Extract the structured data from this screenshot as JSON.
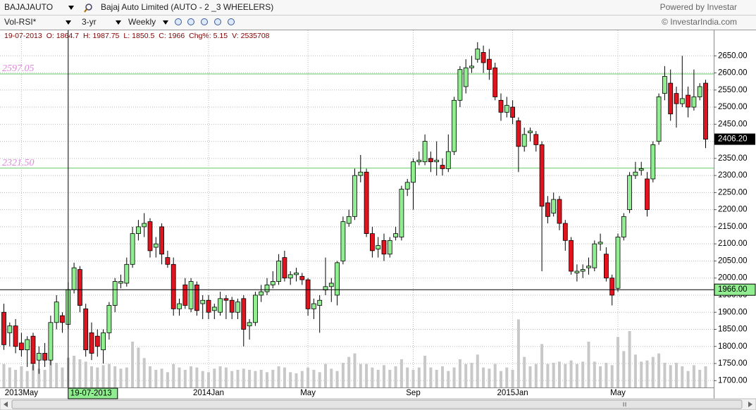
{
  "toolbar": {
    "symbol": "BAJAJAUTO",
    "company": "Bajaj Auto Limited  (AUTO - 2 _3 WHEELERS)",
    "powered": "Powered by Investar",
    "indicator": "Vol-RSI*",
    "period": "3-yr",
    "interval": "Weekly",
    "copyright": "© InvestarIndia.com"
  },
  "info": {
    "date": "19-07-2013",
    "fields": [
      {
        "label": "O:",
        "value": 1864.7
      },
      {
        "label": "H:",
        "value": 1987.75
      },
      {
        "label": "L:",
        "value": 1850.5
      },
      {
        "label": "C:",
        "value": 1966
      },
      {
        "label": "Chg%:",
        "value": 5.15
      },
      {
        "label": "V:",
        "value": 2535708
      }
    ]
  },
  "chart_data": {
    "type": "candlestick",
    "categories": [
      null,
      null,
      null,
      "2013May",
      null,
      null,
      null,
      null,
      null,
      null,
      null,
      "19-07-2013",
      null,
      null,
      null,
      null,
      null,
      null,
      null,
      null,
      null,
      null,
      null,
      null,
      null,
      null,
      null,
      null,
      null,
      null,
      null,
      null,
      null,
      null,
      null,
      "2014Jan",
      null,
      null,
      null,
      null,
      null,
      null,
      null,
      null,
      null,
      null,
      null,
      null,
      null,
      null,
      null,
      null,
      "May",
      null,
      null,
      null,
      null,
      null,
      null,
      null,
      null,
      null,
      null,
      null,
      null,
      null,
      null,
      null,
      null,
      null,
      "Sep",
      null,
      null,
      null,
      null,
      null,
      null,
      null,
      null,
      null,
      null,
      null,
      null,
      null,
      null,
      null,
      null,
      "2015Jan",
      null,
      null,
      null,
      null,
      null,
      null,
      null,
      null,
      null,
      null,
      null,
      null,
      null,
      null,
      null,
      null,
      null,
      "May",
      null,
      null,
      null,
      null,
      null,
      null,
      null,
      null,
      null,
      null,
      null,
      null,
      null,
      null,
      null
    ],
    "open": [
      1900,
      1840,
      1860,
      1810,
      1790,
      1830,
      1760,
      1780,
      1760,
      1870,
      1890,
      1864.7,
      1966,
      2025,
      1910,
      1840,
      1830,
      1790,
      1840,
      1920,
      1985,
      1985,
      2040,
      2130,
      2150,
      2165,
      2090,
      2150,
      2060,
      2040,
      1910,
      1980,
      1910,
      1980,
      1925,
      1935,
      1905,
      1900,
      1940,
      1935,
      1900,
      1940,
      1860,
      1870,
      1950,
      1960,
      1980,
      1990,
      2060,
      2000,
      2010,
      2005,
      1995,
      1910,
      1920,
      1965,
      1975,
      1950,
      2050,
      2160,
      2180,
      2300,
      2310,
      2130,
      2085,
      2110,
      2070,
      2120,
      2120,
      2260,
      2280,
      2340,
      2340,
      2350,
      2340,
      2330,
      2320,
      2370,
      2520,
      2560,
      2615,
      2640,
      2660,
      2640,
      2615,
      2520,
      2485,
      2500,
      2460,
      2385,
      2425,
      2420,
      2390,
      2220,
      2190,
      2230,
      2160,
      2110,
      2015,
      2020,
      2030,
      2030,
      2100,
      2070,
      2000,
      1970,
      2120,
      2200,
      2300,
      2315,
      2290,
      2290,
      2400,
      2540,
      2570,
      2540,
      2510,
      2535,
      2500,
      2530,
      2570
    ],
    "high": [
      1925,
      1870,
      1880,
      1840,
      1830,
      1840,
      1800,
      1810,
      1890,
      1950,
      1900,
      1987.75,
      2045,
      2035,
      1925,
      1870,
      1850,
      1850,
      1930,
      2000,
      2010,
      2060,
      2150,
      2170,
      2190,
      2175,
      2120,
      2160,
      2080,
      2060,
      1940,
      2000,
      2000,
      1990,
      1950,
      1950,
      1925,
      1960,
      1950,
      1945,
      1940,
      1950,
      1880,
      1960,
      1980,
      2000,
      2020,
      2070,
      2080,
      2020,
      2030,
      2015,
      2000,
      1940,
      1950,
      2060,
      2000,
      2050,
      2180,
      2200,
      2320,
      2360,
      2320,
      2150,
      2120,
      2130,
      2120,
      2150,
      2270,
      2290,
      2350,
      2370,
      2420,
      2370,
      2400,
      2350,
      2420,
      2530,
      2620,
      2640,
      2650,
      2690,
      2680,
      2670,
      2630,
      2540,
      2530,
      2520,
      2470,
      2440,
      2440,
      2430,
      2400,
      2240,
      2250,
      2240,
      2170,
      2120,
      2040,
      2040,
      2060,
      2110,
      2130,
      2090,
      2010,
      2130,
      2190,
      2310,
      2340,
      2340,
      2310,
      2400,
      2540,
      2620,
      2610,
      2560,
      2650,
      2560,
      2610,
      2570,
      2580
    ],
    "low": [
      1790,
      1800,
      1780,
      1770,
      1740,
      1730,
      1720,
      1740,
      1745,
      1850,
      1840,
      1850.5,
      1955,
      1900,
      1770,
      1760,
      1770,
      1750,
      1820,
      1900,
      1970,
      1975,
      2030,
      2110,
      2120,
      2060,
      2060,
      2040,
      2030,
      1890,
      1890,
      1910,
      1900,
      1890,
      1880,
      1880,
      1880,
      1890,
      1880,
      1880,
      1880,
      1800,
      1820,
      1860,
      1930,
      1950,
      1970,
      1980,
      1990,
      1980,
      1990,
      1980,
      1890,
      1880,
      1840,
      1950,
      1930,
      1920,
      2040,
      2150,
      2170,
      2280,
      2120,
      2060,
      2060,
      2050,
      2060,
      2110,
      2110,
      2240,
      2200,
      2330,
      2330,
      2310,
      2300,
      2300,
      2310,
      2360,
      2500,
      2540,
      2600,
      2630,
      2600,
      2580,
      2520,
      2460,
      2470,
      2450,
      2310,
      2370,
      2400,
      2370,
      2020,
      2160,
      2180,
      2140,
      2080,
      2010,
      1990,
      2000,
      2010,
      2020,
      2080,
      1990,
      1920,
      1960,
      2110,
      2190,
      2290,
      2300,
      2180,
      2280,
      2390,
      2520,
      2460,
      2440,
      2500,
      2470,
      2490,
      2520,
      2380
    ],
    "close": [
      1805,
      1860,
      1800,
      1790,
      1820,
      1750,
      1780,
      1760,
      1870,
      1930,
      1870,
      1966,
      2030,
      1920,
      1790,
      1780,
      1800,
      1840,
      1920,
      1990,
      1990,
      2040,
      2130,
      2150,
      2160,
      2080,
      2100,
      2070,
      2040,
      1910,
      1925,
      1920,
      1990,
      1905,
      1935,
      1900,
      1915,
      1940,
      1935,
      1900,
      1930,
      1850,
      1870,
      1950,
      1960,
      1980,
      1990,
      2050,
      2000,
      2010,
      2015,
      1995,
      1910,
      1925,
      1935,
      1975,
      1985,
      2045,
      2165,
      2180,
      2300,
      2310,
      2130,
      2080,
      2095,
      2070,
      2110,
      2130,
      2260,
      2280,
      2340,
      2345,
      2400,
      2340,
      2345,
      2320,
      2370,
      2520,
      2610,
      2615,
      2620,
      2670,
      2630,
      2610,
      2530,
      2485,
      2505,
      2470,
      2385,
      2420,
      2430,
      2390,
      2210,
      2180,
      2230,
      2160,
      2110,
      2020,
      2020,
      2025,
      2035,
      2100,
      2105,
      2000,
      1950,
      2120,
      2180,
      2300,
      2310,
      2320,
      2200,
      2390,
      2530,
      2590,
      2480,
      2510,
      2525,
      2500,
      2530,
      2560,
      2406.2
    ],
    "volume": [
      2000000,
      1700000,
      1500000,
      1800000,
      1400000,
      1900000,
      1600000,
      1500000,
      2300000,
      2100000,
      1700000,
      2535708,
      2700000,
      2400000,
      2200000,
      1800000,
      1700000,
      1900000,
      2000000,
      1800000,
      1600000,
      1700000,
      3900000,
      3400000,
      2500000,
      1800000,
      1500000,
      1600000,
      1300000,
      2000000,
      1700000,
      1500000,
      1800000,
      1700000,
      1400000,
      1300000,
      1600000,
      1800000,
      1700000,
      1400000,
      1500000,
      1600000,
      1500000,
      1400000,
      1500000,
      1300000,
      1500000,
      1800000,
      1700000,
      1300000,
      1200000,
      1400000,
      1700000,
      1500000,
      1300000,
      2000000,
      1600000,
      1400000,
      2100000,
      2600000,
      2900000,
      2000000,
      2000000,
      1700000,
      1500000,
      1900000,
      1500000,
      1800000,
      2400000,
      1700000,
      1500000,
      1700000,
      2700000,
      1700000,
      1500000,
      1800000,
      1400000,
      1700000,
      2400000,
      2000000,
      2100000,
      2800000,
      1700000,
      1600000,
      2000000,
      1400000,
      1700000,
      1500000,
      5800000,
      2600000,
      1800000,
      2000000,
      3700000,
      2000000,
      2100000,
      2200000,
      2000000,
      2300000,
      2000000,
      2200000,
      3900000,
      2200000,
      1800000,
      2100000,
      1900000,
      4300000,
      3100000,
      4800000,
      2800000,
      2200000,
      2300000,
      2600000,
      2900000,
      2100000,
      1900000,
      2100000,
      1800000,
      1400000,
      1900000,
      1500000,
      1800000
    ],
    "close_label": "2406.20",
    "ylim": [
      1680,
      2700
    ],
    "yticks": [
      {
        "value": 1700,
        "label": "1700.00"
      },
      {
        "value": 1750,
        "label": "1750.00"
      },
      {
        "value": 1800,
        "label": "1800.00"
      },
      {
        "value": 1850,
        "label": "1850.00"
      },
      {
        "value": 1900,
        "label": "1900.00"
      },
      {
        "value": 1950,
        "label": "1950.00"
      },
      {
        "value": 2000,
        "label": "2000.00"
      },
      {
        "value": 2050,
        "label": "2050.00"
      },
      {
        "value": 2100,
        "label": "2100.00"
      },
      {
        "value": 2150,
        "label": "2150.00"
      },
      {
        "value": 2200,
        "label": "2200.00"
      },
      {
        "value": 2250,
        "label": "2250.00"
      },
      {
        "value": 2300,
        "label": "2300.00"
      },
      {
        "value": 2350,
        "label": "2350.00"
      },
      {
        "value": 2400,
        "label": "2400.00"
      },
      {
        "value": 2450,
        "label": "2450.00"
      },
      {
        "value": 2500,
        "label": "2500.00"
      },
      {
        "value": 2550,
        "label": "2550.00"
      },
      {
        "value": 2600,
        "label": "2600.00"
      },
      {
        "value": 2650,
        "label": "2650.00"
      }
    ],
    "volume_lim": [
      0,
      12000000
    ],
    "levels": [
      {
        "value": 2597.05,
        "label": "2597.05"
      },
      {
        "value": 2321.5,
        "label": "2321.50"
      }
    ],
    "crosshair": {
      "x": "19-07-2013",
      "y": 1966,
      "y_label": "1966.00"
    },
    "grid": true,
    "up_color": "#90ee90",
    "down_color": "#e0141e",
    "volume_color": "#c8c8c8",
    "level_color": "#66cc66",
    "level_label_color": "#dd88dd"
  }
}
